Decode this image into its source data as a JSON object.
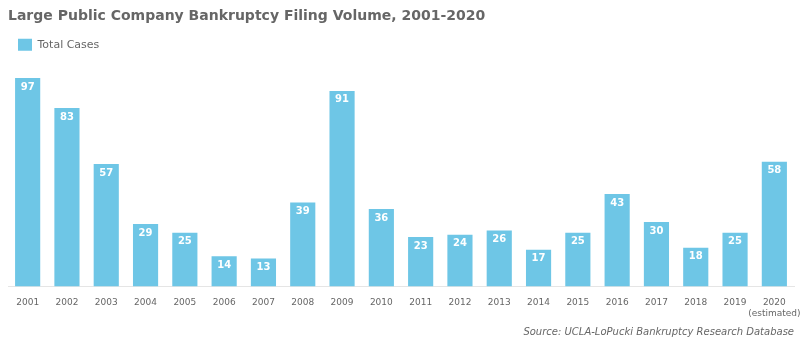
{
  "chart_data": {
    "type": "bar",
    "title": "Large Public Company Bankruptcy Filing Volume, 2001-2020",
    "categories": [
      "2001",
      "2002",
      "2003",
      "2004",
      "2005",
      "2006",
      "2007",
      "2008",
      "2009",
      "2010",
      "2011",
      "2012",
      "2013",
      "2014",
      "2015",
      "2016",
      "2017",
      "2018",
      "2019",
      "2020\n(estimated)"
    ],
    "series": [
      {
        "name": "Total Cases",
        "color": "#6EC6E6",
        "values": [
          97,
          83,
          57,
          29,
          25,
          14,
          13,
          39,
          91,
          36,
          23,
          24,
          26,
          17,
          25,
          43,
          30,
          18,
          25,
          58
        ]
      }
    ],
    "ylim": [
      0,
      105
    ],
    "grid": false,
    "legend": "upper left",
    "data_labels": true,
    "tick_labels": "x",
    "annotations": [
      "Source: UCLA-LoPucki Bankruptcy Research Database"
    ]
  }
}
